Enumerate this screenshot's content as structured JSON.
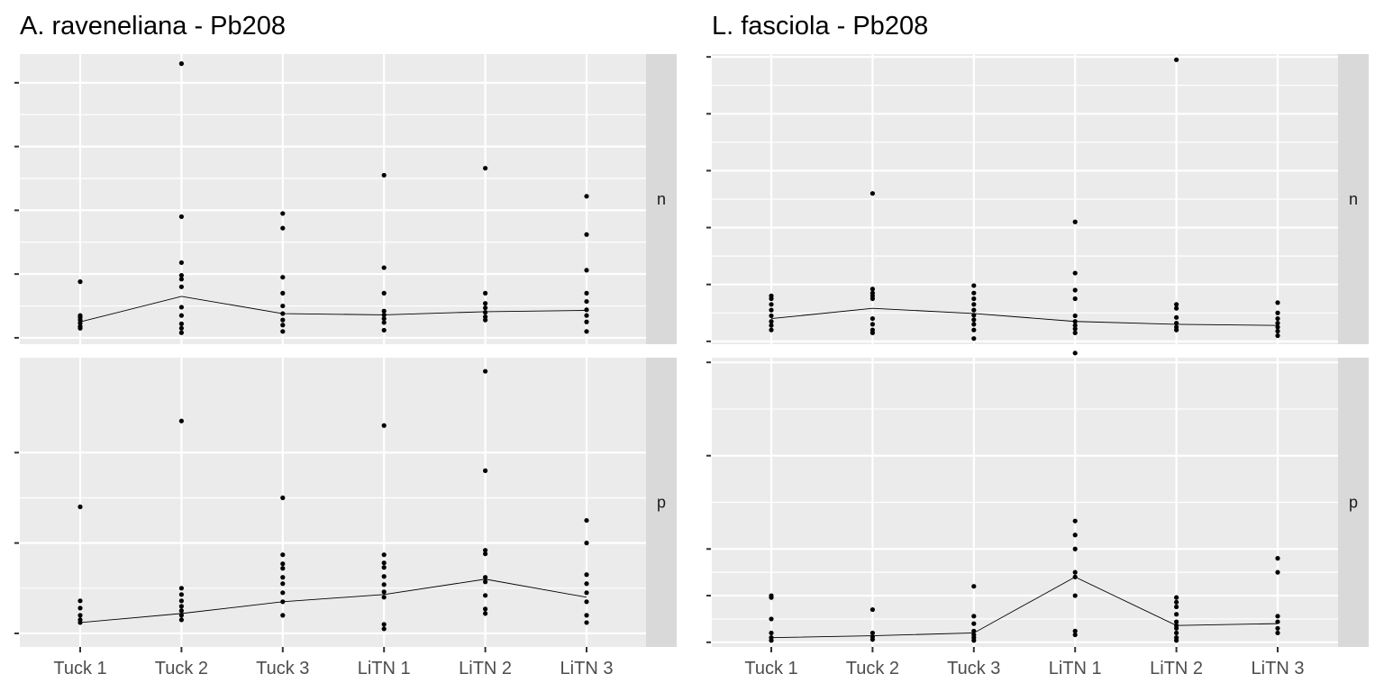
{
  "colors": {
    "panel_bg": "#EBEBEB",
    "grid": "#FFFFFF",
    "strip_bg": "#D9D9D9",
    "points": "#000000",
    "line": "#000000",
    "axis_text": "#4D4D4D",
    "title_text": "#000000"
  },
  "chart_data": [
    {
      "type": "scatter",
      "title": "A. raveneliana - Pb208",
      "x_categories": [
        "Tuck 1",
        "Tuck 2",
        "Tuck 3",
        "LiTN 1",
        "LiTN 2",
        "LiTN 3"
      ],
      "y_tick_labels_shown": false,
      "facets": [
        {
          "label": "n",
          "ylim": [
            -0.1,
            4.45
          ],
          "yticks": [
            0,
            1,
            2,
            3,
            4
          ],
          "points": [
            [
              0.15,
              0.18,
              0.23,
              0.28,
              0.32,
              0.35,
              0.88
            ],
            [
              0.08,
              0.15,
              0.22,
              0.35,
              0.48,
              0.8,
              0.92,
              0.98,
              1.18,
              1.9,
              4.3
            ],
            [
              0.1,
              0.2,
              0.28,
              0.38,
              0.5,
              0.7,
              0.95,
              1.72,
              1.95
            ],
            [
              0.12,
              0.24,
              0.3,
              0.36,
              0.42,
              0.7,
              1.1,
              2.55
            ],
            [
              0.28,
              0.33,
              0.4,
              0.47,
              0.54,
              0.7,
              2.66
            ],
            [
              0.1,
              0.25,
              0.35,
              0.44,
              0.57,
              0.7,
              1.06,
              1.62,
              2.22
            ]
          ],
          "medians": [
            0.25,
            0.65,
            0.38,
            0.36,
            0.41,
            0.43
          ]
        },
        {
          "label": "p",
          "ylim": [
            -0.15,
            3.05
          ],
          "yticks": [
            0,
            1,
            2
          ],
          "points": [
            [
              0.12,
              0.15,
              0.2,
              0.28,
              0.36,
              1.4
            ],
            [
              0.15,
              0.2,
              0.25,
              0.3,
              0.36,
              0.43,
              0.5,
              2.35
            ],
            [
              0.2,
              0.35,
              0.45,
              0.55,
              0.62,
              0.72,
              0.77,
              0.87,
              1.5
            ],
            [
              0.05,
              0.1,
              0.4,
              0.46,
              0.54,
              0.63,
              0.73,
              0.78,
              0.87,
              2.3
            ],
            [
              0.22,
              0.27,
              0.42,
              0.57,
              0.62,
              0.88,
              0.92,
              1.8,
              2.9
            ],
            [
              0.12,
              0.2,
              0.35,
              0.45,
              0.55,
              0.65,
              1.0,
              1.25
            ]
          ],
          "medians": [
            0.12,
            0.22,
            0.35,
            0.43,
            0.6,
            0.4
          ]
        }
      ]
    },
    {
      "type": "scatter",
      "title": "L. fasciola - Pb208",
      "x_categories": [
        "Tuck 1",
        "Tuck 2",
        "Tuck 3",
        "LiTN 1",
        "LiTN 2",
        "LiTN 3"
      ],
      "y_tick_labels_shown": false,
      "facets": [
        {
          "label": "n",
          "ylim": [
            -0.05,
            5.05
          ],
          "yticks": [
            0,
            1,
            2,
            3,
            4,
            5
          ],
          "points": [
            [
              0.2,
              0.28,
              0.35,
              0.45,
              0.55,
              0.65,
              0.75,
              0.8
            ],
            [
              0.15,
              0.2,
              0.3,
              0.4,
              0.75,
              0.8,
              0.85,
              0.92,
              2.6
            ],
            [
              0.05,
              0.2,
              0.3,
              0.38,
              0.46,
              0.55,
              0.65,
              0.75,
              0.85,
              0.98
            ],
            [
              0.15,
              0.22,
              0.28,
              0.35,
              0.45,
              0.75,
              0.9,
              1.2,
              2.1
            ],
            [
              0.2,
              0.25,
              0.32,
              0.42,
              0.58,
              0.65,
              4.95
            ],
            [
              0.1,
              0.18,
              0.25,
              0.32,
              0.4,
              0.5,
              0.68
            ]
          ],
          "medians": [
            0.4,
            0.58,
            0.49,
            0.35,
            0.3,
            0.28
          ]
        },
        {
          "label": "p",
          "ylim": [
            -0.05,
            3.05
          ],
          "yticks": [
            0,
            0.5,
            1,
            2,
            3
          ],
          "points": [
            [
              0.02,
              0.05,
              0.1,
              0.25,
              0.48,
              0.5
            ],
            [
              0.03,
              0.06,
              0.1,
              0.35
            ],
            [
              0.02,
              0.05,
              0.08,
              0.12,
              0.2,
              0.28,
              0.6
            ],
            [
              0.08,
              0.12,
              0.5,
              0.7,
              0.75,
              1.0,
              1.15,
              1.3,
              3.1
            ],
            [
              0.02,
              0.05,
              0.1,
              0.15,
              0.18,
              0.22,
              0.3,
              0.38,
              0.43,
              0.48
            ],
            [
              0.1,
              0.15,
              0.22,
              0.28,
              0.75,
              0.9
            ]
          ],
          "medians": [
            0.05,
            0.07,
            0.1,
            0.7,
            0.18,
            0.2
          ]
        }
      ]
    }
  ]
}
